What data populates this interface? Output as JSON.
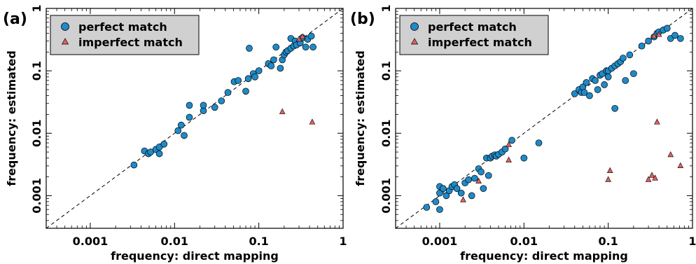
{
  "chart_data": [
    {
      "panel_label": "(a)",
      "type": "scatter",
      "title": "",
      "xlabel": "frequency: direct mapping",
      "ylabel": "frequency: estimated",
      "xscale": "log",
      "yscale": "log",
      "xlim": [
        0.0003,
        1
      ],
      "ylim": [
        0.0003,
        1
      ],
      "xticks": [
        {
          "value": 0.001,
          "label": "0.001"
        },
        {
          "value": 0.01,
          "label": "0.01"
        },
        {
          "value": 0.1,
          "label": "0.1"
        },
        {
          "value": 1,
          "label": "1"
        }
      ],
      "yticks": [
        {
          "value": 0.001,
          "label": "0.001"
        },
        {
          "value": 0.01,
          "label": "0.01"
        },
        {
          "value": 0.1,
          "label": "0.1"
        },
        {
          "value": 1,
          "label": "1"
        }
      ],
      "grid": false,
      "legend_position": "top-left",
      "diagonal": "dashed y=x",
      "series": [
        {
          "name": "perfect match",
          "marker": "circle",
          "color": "#1f8ac8",
          "points": [
            [
              0.0033,
              0.0031
            ],
            [
              0.0044,
              0.0052
            ],
            [
              0.0049,
              0.0047
            ],
            [
              0.0052,
              0.005
            ],
            [
              0.006,
              0.0055
            ],
            [
              0.0066,
              0.0047
            ],
            [
              0.0066,
              0.006
            ],
            [
              0.0075,
              0.0067
            ],
            [
              0.011,
              0.011
            ],
            [
              0.012,
              0.0135
            ],
            [
              0.013,
              0.0092
            ],
            [
              0.015,
              0.018
            ],
            [
              0.015,
              0.028
            ],
            [
              0.022,
              0.023
            ],
            [
              0.022,
              0.028
            ],
            [
              0.03,
              0.026
            ],
            [
              0.036,
              0.033
            ],
            [
              0.043,
              0.045
            ],
            [
              0.051,
              0.067
            ],
            [
              0.057,
              0.07
            ],
            [
              0.07,
              0.047
            ],
            [
              0.075,
              0.075
            ],
            [
              0.077,
              0.23
            ],
            [
              0.086,
              0.09
            ],
            [
              0.09,
              0.08
            ],
            [
              0.1,
              0.1
            ],
            [
              0.13,
              0.13
            ],
            [
              0.14,
              0.12
            ],
            [
              0.15,
              0.15
            ],
            [
              0.16,
              0.24
            ],
            [
              0.18,
              0.11
            ],
            [
              0.19,
              0.15
            ],
            [
              0.2,
              0.18
            ],
            [
              0.21,
              0.2
            ],
            [
              0.22,
              0.21
            ],
            [
              0.24,
              0.23
            ],
            [
              0.24,
              0.33
            ],
            [
              0.26,
              0.25
            ],
            [
              0.27,
              0.3
            ],
            [
              0.28,
              0.26
            ],
            [
              0.31,
              0.28
            ],
            [
              0.33,
              0.34
            ],
            [
              0.36,
              0.24
            ],
            [
              0.38,
              0.32
            ],
            [
              0.42,
              0.36
            ],
            [
              0.44,
              0.24
            ]
          ]
        },
        {
          "name": "imperfect match",
          "marker": "triangle",
          "color": "#e06060",
          "points": [
            [
              0.19,
              0.022
            ],
            [
              0.43,
              0.015
            ],
            [
              0.3,
              0.32
            ],
            [
              0.33,
              0.35
            ]
          ]
        }
      ]
    },
    {
      "panel_label": "(b)",
      "type": "scatter",
      "title": "",
      "xlabel": "frequency: direct mapping",
      "ylabel": "frequency: estimated",
      "xscale": "log",
      "yscale": "log",
      "xlim": [
        0.0003,
        1
      ],
      "ylim": [
        0.0003,
        1
      ],
      "xticks": [
        {
          "value": 0.001,
          "label": "0.001"
        },
        {
          "value": 0.01,
          "label": "0.01"
        },
        {
          "value": 0.1,
          "label": "0.1"
        },
        {
          "value": 1,
          "label": "1"
        }
      ],
      "yticks": [
        {
          "value": 0.001,
          "label": "0.001"
        },
        {
          "value": 0.01,
          "label": "0.01"
        },
        {
          "value": 0.1,
          "label": "0.1"
        },
        {
          "value": 1,
          "label": "1"
        }
      ],
      "grid": false,
      "legend_position": "top-left",
      "diagonal": "dashed y=x",
      "series": [
        {
          "name": "perfect match",
          "marker": "circle",
          "color": "#1f8ac8",
          "points": [
            [
              0.0007,
              0.00065
            ],
            [
              0.0009,
              0.0008
            ],
            [
              0.001,
              0.0006
            ],
            [
              0.001,
              0.0011
            ],
            [
              0.001,
              0.0014
            ],
            [
              0.0011,
              0.0013
            ],
            [
              0.0012,
              0.001
            ],
            [
              0.0013,
              0.0012
            ],
            [
              0.0014,
              0.0014
            ],
            [
              0.0015,
              0.0015
            ],
            [
              0.0016,
              0.0013
            ],
            [
              0.0018,
              0.0011
            ],
            [
              0.002,
              0.0016
            ],
            [
              0.0022,
              0.0018
            ],
            [
              0.0024,
              0.001
            ],
            [
              0.0026,
              0.0019
            ],
            [
              0.0029,
              0.0027
            ],
            [
              0.0031,
              0.0024
            ],
            [
              0.0033,
              0.0013
            ],
            [
              0.0036,
              0.004
            ],
            [
              0.0038,
              0.0021
            ],
            [
              0.004,
              0.004
            ],
            [
              0.0042,
              0.0043
            ],
            [
              0.0045,
              0.0045
            ],
            [
              0.0047,
              0.0043
            ],
            [
              0.005,
              0.0046
            ],
            [
              0.0055,
              0.005
            ],
            [
              0.006,
              0.0056
            ],
            [
              0.0072,
              0.0077
            ],
            [
              0.01,
              0.004
            ],
            [
              0.015,
              0.007
            ],
            [
              0.04,
              0.043
            ],
            [
              0.045,
              0.05
            ],
            [
              0.048,
              0.045
            ],
            [
              0.05,
              0.055
            ],
            [
              0.052,
              0.045
            ],
            [
              0.055,
              0.065
            ],
            [
              0.06,
              0.04
            ],
            [
              0.065,
              0.075
            ],
            [
              0.07,
              0.07
            ],
            [
              0.075,
              0.05
            ],
            [
              0.08,
              0.085
            ],
            [
              0.085,
              0.09
            ],
            [
              0.09,
              0.06
            ],
            [
              0.095,
              0.1
            ],
            [
              0.1,
              0.08
            ],
            [
              0.1,
              0.1
            ],
            [
              0.11,
              0.11
            ],
            [
              0.12,
              0.025
            ],
            [
              0.12,
              0.12
            ],
            [
              0.13,
              0.13
            ],
            [
              0.14,
              0.14
            ],
            [
              0.15,
              0.16
            ],
            [
              0.16,
              0.07
            ],
            [
              0.18,
              0.18
            ],
            [
              0.2,
              0.09
            ],
            [
              0.25,
              0.25
            ],
            [
              0.3,
              0.3
            ],
            [
              0.35,
              0.35
            ],
            [
              0.38,
              0.4
            ],
            [
              0.4,
              0.42
            ],
            [
              0.45,
              0.45
            ],
            [
              0.5,
              0.48
            ],
            [
              0.55,
              0.33
            ],
            [
              0.62,
              0.37
            ],
            [
              0.72,
              0.33
            ]
          ]
        },
        {
          "name": "imperfect match",
          "marker": "triangle",
          "color": "#e06060",
          "points": [
            [
              0.0019,
              0.00085
            ],
            [
              0.0029,
              0.0017
            ],
            [
              0.0066,
              0.0065
            ],
            [
              0.0066,
              0.0037
            ],
            [
              0.1,
              0.0018
            ],
            [
              0.105,
              0.0025
            ],
            [
              0.3,
              0.0018
            ],
            [
              0.33,
              0.0021
            ],
            [
              0.36,
              0.0019
            ],
            [
              0.38,
              0.015
            ],
            [
              0.55,
              0.0045
            ],
            [
              0.72,
              0.003
            ],
            [
              0.35,
              0.36
            ],
            [
              0.4,
              0.38
            ]
          ]
        }
      ]
    }
  ]
}
